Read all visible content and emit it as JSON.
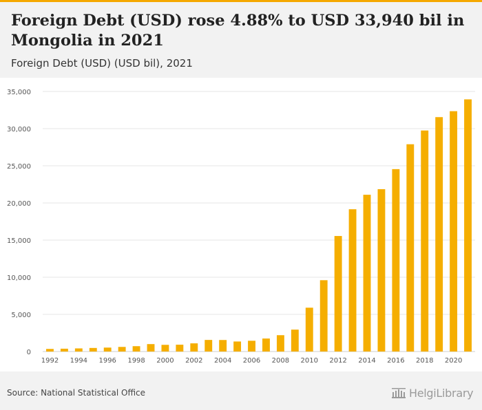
{
  "header": {
    "title": "Foreign Debt (USD) rose 4.88% to USD 33,940 bil in Mongolia in 2021",
    "subtitle": "Foreign Debt (USD) (USD bil), 2021"
  },
  "footer": {
    "source": "Source: National Statistical Office",
    "logo_text": "HelgiLibrary"
  },
  "colors": {
    "bar": "#f5ae00",
    "accent": "#f5a800",
    "grid": "#e6e6e6",
    "axis_text": "#555555"
  },
  "chart_data": {
    "type": "bar",
    "title": "Foreign Debt (USD) rose 4.88% to USD 33,940 bil in Mongolia in 2021",
    "subtitle": "Foreign Debt (USD) (USD bil), 2021",
    "xlabel": "",
    "ylabel": "",
    "grid": true,
    "ylim": [
      0,
      35000
    ],
    "yticks": [
      0,
      5000,
      10000,
      15000,
      20000,
      25000,
      30000,
      35000
    ],
    "ytick_labels": [
      "0",
      "5,000",
      "10,000",
      "15,000",
      "20,000",
      "25,000",
      "30,000",
      "35,000"
    ],
    "x_tick_labels": [
      "1992",
      "1994",
      "1996",
      "1998",
      "2000",
      "2002",
      "2004",
      "2006",
      "2008",
      "2010",
      "2012",
      "2014",
      "2016",
      "2018",
      "2020"
    ],
    "categories": [
      "1992",
      "1993",
      "1994",
      "1995",
      "1996",
      "1997",
      "1998",
      "1999",
      "2000",
      "2001",
      "2002",
      "2003",
      "2004",
      "2005",
      "2006",
      "2007",
      "2008",
      "2009",
      "2010",
      "2011",
      "2012",
      "2013",
      "2014",
      "2015",
      "2016",
      "2017",
      "2018",
      "2019",
      "2020",
      "2021"
    ],
    "values": [
      350,
      380,
      420,
      480,
      530,
      620,
      720,
      1000,
      900,
      920,
      1100,
      1560,
      1550,
      1350,
      1450,
      1750,
      2200,
      2950,
      5900,
      9600,
      15550,
      19150,
      21100,
      21850,
      24550,
      27900,
      29750,
      31550,
      32350,
      33940
    ]
  }
}
